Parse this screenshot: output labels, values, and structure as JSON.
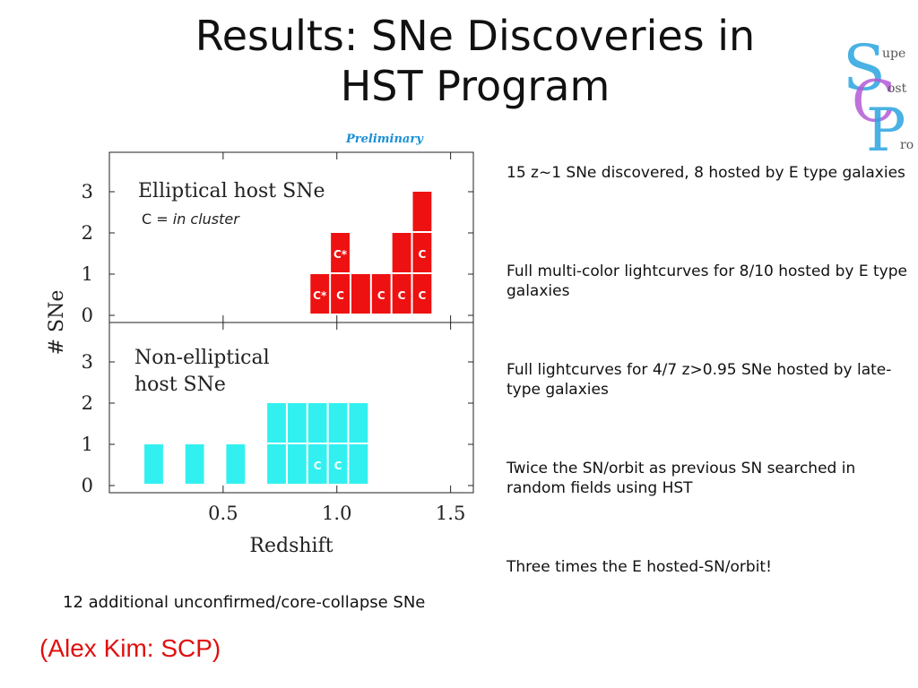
{
  "title": {
    "line1": "Results:  SNe Discoveries in",
    "line2": "HST Program"
  },
  "logo": {
    "letters": [
      "S",
      "C",
      "P"
    ],
    "small_text": [
      "upe",
      "ost",
      "ro"
    ],
    "colors": {
      "s": "#2aa4e0",
      "c": "#b35bd6",
      "p": "#2aa4e0"
    }
  },
  "preliminary": "Preliminary",
  "chart_data": {
    "type": "bar",
    "xlabel": "Redshift",
    "ylabel": "# SNe",
    "xlim": [
      0.0,
      1.6
    ],
    "xticks": [
      0.5,
      1.0,
      1.5
    ],
    "xtick_labels": [
      "0.5",
      "1.0",
      "1.5"
    ],
    "bin_width": 0.09,
    "panels": [
      {
        "name": "elliptical",
        "label_line1": "Elliptical host SNe",
        "sublabel_prefix": "C = ",
        "sublabel_italic": "in cluster",
        "color": "#ee1111",
        "ylim": [
          0,
          4
        ],
        "yticks": [
          0,
          1,
          2,
          3
        ],
        "bins": [
          {
            "x": 0.88,
            "count": 1,
            "boxes": [
              "C*"
            ]
          },
          {
            "x": 0.97,
            "count": 2,
            "boxes": [
              "C",
              "C*"
            ]
          },
          {
            "x": 1.06,
            "count": 1,
            "boxes": [
              ""
            ]
          },
          {
            "x": 1.15,
            "count": 1,
            "boxes": [
              "C"
            ]
          },
          {
            "x": 1.24,
            "count": 2,
            "boxes": [
              "C",
              ""
            ]
          },
          {
            "x": 1.33,
            "count": 3,
            "boxes": [
              "C",
              "C",
              ""
            ]
          }
        ]
      },
      {
        "name": "non-elliptical",
        "label_line1": "Non-elliptical",
        "label_line2": "host SNe",
        "color": "#33f0f0",
        "ylim": [
          0,
          4
        ],
        "yticks": [
          0,
          1,
          2,
          3
        ],
        "bins": [
          {
            "x": 0.15,
            "count": 1,
            "boxes": [
              ""
            ]
          },
          {
            "x": 0.33,
            "count": 1,
            "boxes": [
              ""
            ]
          },
          {
            "x": 0.51,
            "count": 1,
            "boxes": [
              ""
            ]
          },
          {
            "x": 0.69,
            "count": 2,
            "boxes": [
              "",
              ""
            ]
          },
          {
            "x": 0.78,
            "count": 2,
            "boxes": [
              "",
              ""
            ]
          },
          {
            "x": 0.87,
            "count": 2,
            "boxes": [
              "C",
              ""
            ]
          },
          {
            "x": 0.96,
            "count": 2,
            "boxes": [
              "C",
              ""
            ]
          },
          {
            "x": 1.05,
            "count": 2,
            "boxes": [
              "",
              ""
            ]
          }
        ]
      }
    ]
  },
  "bullets": [
    "15 z~1 SNe discovered, 8 hosted by E type galaxies",
    "Full multi-color lightcurves for 8/10 hosted by E type galaxies",
    "Full lightcurves for 4/7 z>0.95 SNe hosted by late-type galaxies",
    "Twice the SN/orbit as previous SN searched in random fields using HST",
    "Three times the E hosted-SN/orbit!"
  ],
  "footnote": "12 additional unconfirmed/core-collapse SNe",
  "credit": "(Alex Kim: SCP)"
}
